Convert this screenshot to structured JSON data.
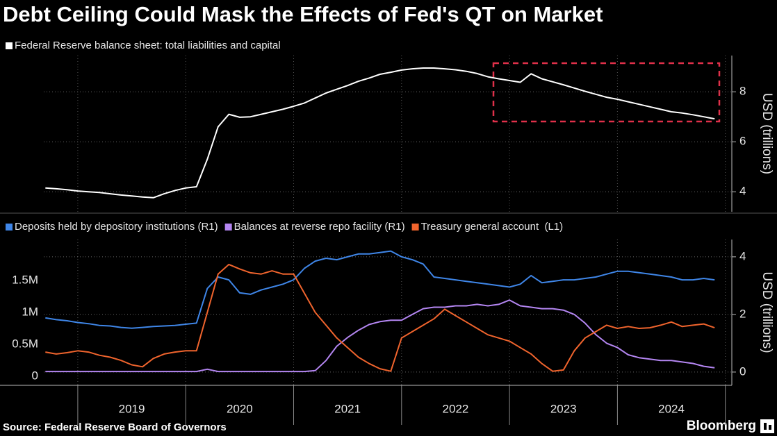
{
  "title": "Debt Ceiling Could Mask the Effects of Fed's QT on Market",
  "source": "Source: Federal Reserve Board of Governors",
  "logo": "Bloomberg",
  "chart_data": [
    {
      "type": "line",
      "ylabel": "USD (trillions)",
      "y_side": "right",
      "xlim": [
        2018.685,
        2025.06
      ],
      "ylim": [
        3.2,
        9.45
      ],
      "yticks": [
        4,
        6,
        8
      ],
      "xticks": [
        2019,
        2020,
        2021,
        2022,
        2023,
        2024,
        2025
      ],
      "grid": true,
      "x": [
        2018.7,
        2018.8,
        2018.9,
        2019.0,
        2019.1,
        2019.2,
        2019.3,
        2019.4,
        2019.5,
        2019.6,
        2019.7,
        2019.8,
        2019.9,
        2020.0,
        2020.1,
        2020.2,
        2020.3,
        2020.4,
        2020.5,
        2020.6,
        2020.7,
        2020.8,
        2020.9,
        2021.0,
        2021.1,
        2021.2,
        2021.3,
        2021.4,
        2021.5,
        2021.6,
        2021.7,
        2021.8,
        2021.9,
        2022.0,
        2022.1,
        2022.2,
        2022.3,
        2022.4,
        2022.5,
        2022.6,
        2022.7,
        2022.8,
        2022.9,
        2023.0,
        2023.1,
        2023.2,
        2023.3,
        2023.4,
        2023.5,
        2023.6,
        2023.7,
        2023.8,
        2023.9,
        2024.0,
        2024.1,
        2024.2,
        2024.3,
        2024.4,
        2024.5,
        2024.6,
        2024.7,
        2024.8,
        2024.9
      ],
      "series": [
        {
          "name": "Federal Reserve balance sheet: total liabilities and capital",
          "color": "#ffffff",
          "values": [
            4.15,
            4.12,
            4.08,
            4.03,
            4.0,
            3.97,
            3.92,
            3.87,
            3.83,
            3.79,
            3.76,
            3.92,
            4.05,
            4.15,
            4.2,
            5.3,
            6.6,
            7.1,
            6.98,
            7.0,
            7.1,
            7.2,
            7.3,
            7.42,
            7.55,
            7.75,
            7.95,
            8.1,
            8.25,
            8.42,
            8.55,
            8.7,
            8.78,
            8.87,
            8.92,
            8.95,
            8.95,
            8.92,
            8.88,
            8.82,
            8.73,
            8.6,
            8.52,
            8.45,
            8.38,
            8.72,
            8.52,
            8.4,
            8.28,
            8.15,
            8.02,
            7.9,
            7.78,
            7.7,
            7.6,
            7.5,
            7.4,
            7.3,
            7.2,
            7.15,
            7.08,
            7.0,
            6.92
          ]
        }
      ]
    },
    {
      "type": "line",
      "y2label": "USD (trillions)",
      "xlim": [
        2018.685,
        2025.06
      ],
      "ylim": [
        -140000,
        2140000
      ],
      "yticks": [
        0,
        {
          "value": 500000,
          "label": "0.5M"
        },
        {
          "value": 1000000,
          "label": "1M"
        },
        {
          "value": 1500000,
          "label": "1.5M"
        }
      ],
      "y2lim": [
        -0.46,
        4.6
      ],
      "y2ticks": [
        0,
        2,
        4
      ],
      "xticks": [
        {
          "value": 2019,
          "label": "2019"
        },
        {
          "value": 2020,
          "label": "2020"
        },
        {
          "value": 2021,
          "label": "2021"
        },
        {
          "value": 2022,
          "label": "2022"
        },
        {
          "value": 2023,
          "label": "2023"
        },
        {
          "value": 2024,
          "label": "2024"
        },
        2025
      ],
      "grid": "y2",
      "x": [
        2018.7,
        2018.8,
        2018.9,
        2019.0,
        2019.1,
        2019.2,
        2019.3,
        2019.4,
        2019.5,
        2019.6,
        2019.7,
        2019.8,
        2019.9,
        2020.0,
        2020.1,
        2020.2,
        2020.3,
        2020.4,
        2020.5,
        2020.6,
        2020.7,
        2020.8,
        2020.9,
        2021.0,
        2021.1,
        2021.2,
        2021.3,
        2021.4,
        2021.5,
        2021.6,
        2021.7,
        2021.8,
        2021.9,
        2022.0,
        2022.1,
        2022.2,
        2022.3,
        2022.4,
        2022.5,
        2022.6,
        2022.7,
        2022.8,
        2022.9,
        2023.0,
        2023.1,
        2023.2,
        2023.3,
        2023.4,
        2023.5,
        2023.6,
        2023.7,
        2023.8,
        2023.9,
        2024.0,
        2024.1,
        2024.2,
        2024.3,
        2024.4,
        2024.5,
        2024.6,
        2024.7,
        2024.8,
        2024.9
      ],
      "series": [
        {
          "name": "Deposits held by depository institutions (R1)",
          "color": "#3f86e8",
          "axis": "y2",
          "values": [
            1.88,
            1.82,
            1.78,
            1.72,
            1.68,
            1.62,
            1.6,
            1.55,
            1.52,
            1.55,
            1.58,
            1.6,
            1.62,
            1.66,
            1.7,
            2.9,
            3.3,
            3.2,
            2.75,
            2.7,
            2.85,
            2.95,
            3.05,
            3.2,
            3.6,
            3.85,
            3.95,
            3.9,
            4.0,
            4.1,
            4.1,
            4.15,
            4.2,
            4.0,
            3.9,
            3.75,
            3.3,
            3.25,
            3.2,
            3.15,
            3.1,
            3.05,
            3.0,
            2.95,
            3.05,
            3.35,
            3.1,
            3.15,
            3.2,
            3.2,
            3.25,
            3.3,
            3.4,
            3.5,
            3.5,
            3.45,
            3.4,
            3.35,
            3.3,
            3.2,
            3.2,
            3.25,
            3.2
          ]
        },
        {
          "name": "Balances at reverse repo facility (R1)",
          "color": "#b486f2",
          "axis": "y2",
          "values": [
            0.02,
            0.02,
            0.02,
            0.02,
            0.02,
            0.02,
            0.02,
            0.02,
            0.02,
            0.02,
            0.02,
            0.02,
            0.02,
            0.02,
            0.02,
            0.1,
            0.02,
            0.02,
            0.02,
            0.02,
            0.02,
            0.02,
            0.02,
            0.02,
            0.02,
            0.05,
            0.4,
            0.9,
            1.2,
            1.45,
            1.65,
            1.75,
            1.8,
            1.8,
            2.0,
            2.2,
            2.25,
            2.25,
            2.3,
            2.3,
            2.35,
            2.3,
            2.35,
            2.5,
            2.3,
            2.25,
            2.2,
            2.2,
            2.15,
            2.0,
            1.7,
            1.3,
            1.0,
            0.85,
            0.6,
            0.5,
            0.45,
            0.4,
            0.4,
            0.35,
            0.3,
            0.2,
            0.15
          ]
        },
        {
          "name": "Treasury general account  (L1)",
          "color": "#f0642d",
          "axis": "y",
          "values": [
            380000,
            350000,
            370000,
            400000,
            380000,
            330000,
            300000,
            250000,
            180000,
            150000,
            280000,
            350000,
            380000,
            400000,
            400000,
            1000000,
            1600000,
            1750000,
            1680000,
            1620000,
            1600000,
            1650000,
            1600000,
            1600000,
            1300000,
            1000000,
            800000,
            600000,
            450000,
            300000,
            200000,
            120000,
            80000,
            600000,
            700000,
            800000,
            900000,
            1050000,
            950000,
            850000,
            750000,
            650000,
            600000,
            550000,
            450000,
            350000,
            200000,
            80000,
            100000,
            400000,
            600000,
            700000,
            800000,
            750000,
            780000,
            750000,
            760000,
            800000,
            850000,
            780000,
            800000,
            820000,
            760000
          ]
        }
      ]
    }
  ]
}
